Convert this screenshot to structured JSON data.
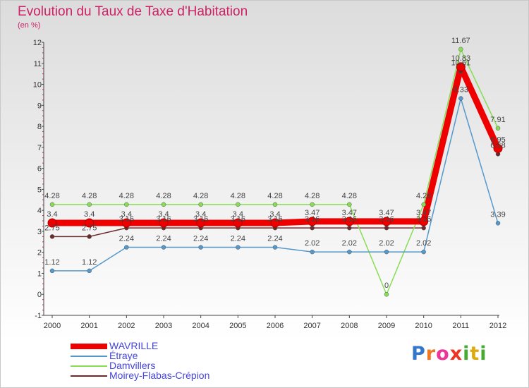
{
  "chart_data": {
    "type": "line",
    "title": "Evolution du Taux de Taxe d'Habitation",
    "subtitle": "(en %)",
    "x": [
      "2000",
      "2001",
      "2002",
      "2003",
      "2004",
      "2005",
      "2006",
      "2007",
      "2008",
      "2009",
      "2010",
      "2011",
      "2012"
    ],
    "ylim": [
      -1,
      12
    ],
    "yticks": [
      "-1",
      "0",
      "1",
      "2",
      "3",
      "4",
      "5",
      "6",
      "7",
      "8",
      "9",
      "10",
      "11",
      "12"
    ],
    "grid": false,
    "series": [
      {
        "name": "Moirey-Flabas-Crépion",
        "color": "#6b2b2b",
        "values": [
          2.75,
          2.75,
          3.16,
          3.16,
          3.16,
          3.16,
          3.16,
          3.16,
          3.16,
          3.16,
          3.16,
          10.61,
          6.68
        ],
        "labels": [
          "2.75",
          "2.75",
          "3.16",
          "3.16",
          "3.16",
          "3.16",
          "3.16",
          "3.16",
          "3.16",
          "3.16",
          "3.16",
          "10.61",
          "6.68"
        ]
      },
      {
        "name": "Damvillers",
        "color": "#88dd55",
        "values": [
          4.28,
          4.28,
          4.28,
          4.28,
          4.28,
          4.28,
          4.28,
          4.28,
          4.28,
          0,
          4.28,
          11.67,
          7.91
        ],
        "labels": [
          "4.28",
          "4.28",
          "4.28",
          "4.28",
          "4.28",
          "4.28",
          "4.28",
          "4.28",
          "4.28",
          "0",
          "4.28",
          "11.67",
          "7.91"
        ]
      },
      {
        "name": "Étraye",
        "color": "#5599cc",
        "values": [
          1.12,
          1.12,
          2.24,
          2.24,
          2.24,
          2.24,
          2.24,
          2.02,
          2.02,
          2.02,
          2.02,
          9.33,
          3.39
        ],
        "labels": [
          "1.12",
          "1.12",
          "2.24",
          "2.24",
          "2.24",
          "2.24",
          "2.24",
          "2.02",
          "2.02",
          "2.02",
          "2.02",
          "9.33",
          "3.39"
        ]
      },
      {
        "name": "WAVRILLE",
        "color": "#ee0000",
        "values": [
          3.4,
          3.4,
          3.4,
          3.4,
          3.4,
          3.4,
          3.4,
          3.47,
          3.47,
          3.47,
          3.47,
          10.83,
          6.95
        ],
        "labels": [
          "3.4",
          "3.4",
          "3.4",
          "3.4",
          "3.4",
          "3.4",
          "3.4",
          "3.47",
          "3.47",
          "3.47",
          "3.47",
          "10.83",
          "6.95"
        ]
      }
    ],
    "legend": [
      "WAVRILLE",
      "Étraye",
      "Damvillers",
      "Moirey-Flabas-Crépion"
    ]
  },
  "logo": {
    "letters": [
      "P",
      "r",
      "o",
      "x",
      "i",
      "t",
      "i"
    ],
    "colors": [
      "#3377cc",
      "#ee7722",
      "#ee3399",
      "#ee3322",
      "#44aa33",
      "#ddaa11",
      "#44aa33"
    ]
  }
}
